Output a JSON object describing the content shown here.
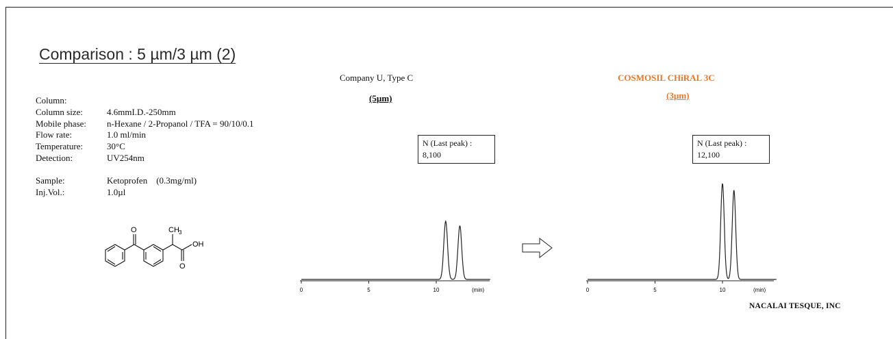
{
  "title": "Comparison : 5 µm/3 µm (2)",
  "conditions": {
    "rows": [
      {
        "label": "Column:",
        "value": ""
      },
      {
        "label": "Column size:",
        "value": "4.6mmI.D.-250mm"
      },
      {
        "label": "Mobile phase:",
        "value": "n-Hexane / 2-Propanol / TFA = 90/10/0.1"
      },
      {
        "label": "Flow rate:",
        "value": "1.0 ml/min"
      },
      {
        "label": "Temperature:",
        "value": "30°C"
      },
      {
        "label": "Detection:",
        "value": "UV254nm"
      }
    ],
    "sample_label": "Sample:",
    "sample_value": "Ketoprofen　(0.3mg/ml)",
    "inj_label": "Inj.Vol.:",
    "inj_value": "1.0µl"
  },
  "structure": {
    "atom_o_top": "O",
    "atom_ch3": "CH",
    "atom_ch3_sub": "3",
    "atom_oh": "OH",
    "atom_o_bottom": "O"
  },
  "comparison_arrow_icon": "right-arrow-icon",
  "chart_data": [
    {
      "type": "line",
      "company": "Company U, Type C",
      "particle_size": "(5µm)",
      "annotation_title": "N (Last peak) :",
      "annotation_value": "8,100",
      "xlabel": "(min)",
      "xlim": [
        0,
        14
      ],
      "xticks": [
        0,
        5,
        10
      ],
      "xtick_labels": [
        "0",
        "5",
        "10"
      ],
      "peaks": [
        {
          "retention_min": 10.7,
          "height": 1.0
        },
        {
          "retention_min": 11.75,
          "height": 0.92
        }
      ],
      "ylim": [
        0,
        1.2
      ]
    },
    {
      "type": "line",
      "company": "COSMOSIL CHiRAL 3C",
      "particle_size": "(3µm)",
      "annotation_title": "N (Last peak) :",
      "annotation_value": "12,100",
      "xlabel": "(min)",
      "xlim": [
        0,
        14
      ],
      "xticks": [
        0,
        5,
        10
      ],
      "xtick_labels": [
        "0",
        "5",
        "10"
      ],
      "peaks": [
        {
          "retention_min": 10.0,
          "height": 1.0
        },
        {
          "retention_min": 10.85,
          "height": 0.93
        }
      ],
      "ylim": [
        0,
        1.1
      ],
      "brand_color": "#e5782a"
    }
  ],
  "footer": "NACALAI TESQUE, INC"
}
